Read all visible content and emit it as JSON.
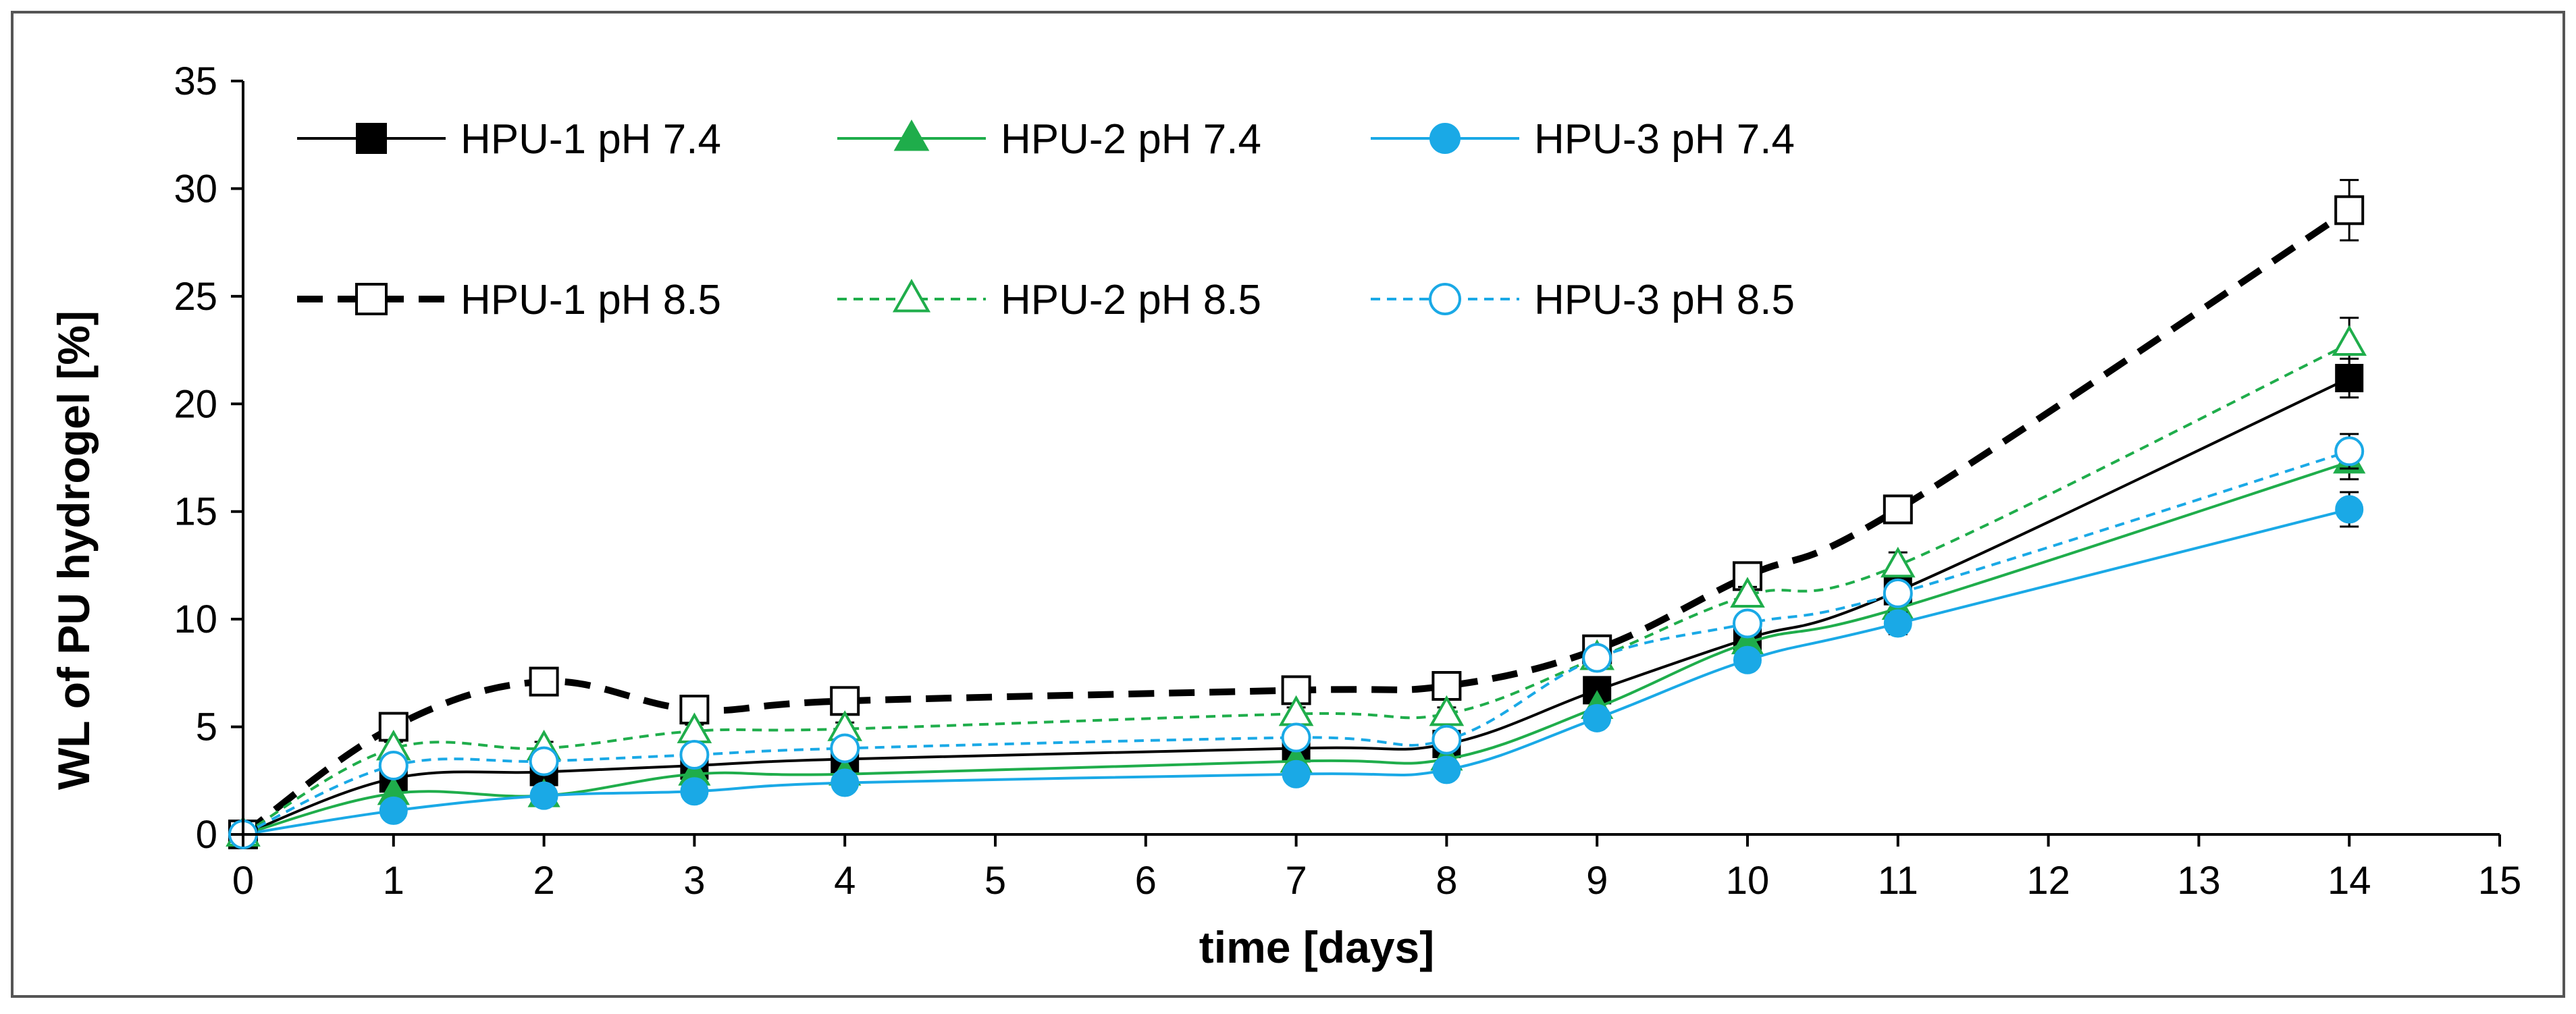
{
  "chart_data": {
    "type": "line",
    "title": "",
    "xlabel": "time [days]",
    "ylabel": "WL of PU hydrogel  [%]",
    "xlim": [
      0,
      15
    ],
    "ylim": [
      0,
      35
    ],
    "xticks": [
      0,
      1,
      2,
      3,
      4,
      5,
      6,
      7,
      8,
      9,
      10,
      11,
      12,
      13,
      14,
      15
    ],
    "yticks": [
      0,
      5,
      10,
      15,
      20,
      25,
      30,
      35
    ],
    "grid": false,
    "legend_position": "top-left",
    "x": [
      0,
      1,
      2,
      3,
      4,
      7,
      8,
      9,
      10,
      11,
      14
    ],
    "series": [
      {
        "name": "HPU-1 pH 7.4",
        "color": "#000000",
        "marker": "square",
        "filled": true,
        "dashed": false,
        "thick": false,
        "values": [
          0,
          2.6,
          2.9,
          3.2,
          3.5,
          4.0,
          4.2,
          6.7,
          9.1,
          11.3,
          21.2
        ],
        "errors": [
          0,
          0.3,
          0.3,
          0.3,
          0.3,
          0.3,
          0.3,
          0.4,
          0.4,
          0.5,
          0.9
        ]
      },
      {
        "name": "HPU-2 pH 7.4",
        "color": "#1fad4b",
        "marker": "triangle",
        "filled": true,
        "dashed": false,
        "thick": false,
        "values": [
          0,
          1.9,
          1.8,
          2.8,
          2.8,
          3.4,
          3.5,
          5.9,
          8.9,
          10.5,
          17.3
        ],
        "errors": [
          0,
          0.3,
          0.3,
          0.3,
          0.3,
          0.3,
          0.3,
          0.4,
          0.4,
          0.5,
          0.8
        ]
      },
      {
        "name": "HPU-3 pH 7.4",
        "color": "#1aa9e6",
        "marker": "circle",
        "filled": true,
        "dashed": false,
        "thick": false,
        "values": [
          0,
          1.1,
          1.8,
          2.0,
          2.4,
          2.8,
          3.0,
          5.4,
          8.1,
          9.8,
          15.1
        ],
        "errors": [
          0,
          0.3,
          0.3,
          0.3,
          0.3,
          0.3,
          0.3,
          0.4,
          0.4,
          0.5,
          0.8
        ]
      },
      {
        "name": "HPU-1 pH 8.5",
        "color": "#000000",
        "marker": "square",
        "filled": false,
        "dashed": true,
        "thick": true,
        "values": [
          0,
          5.0,
          7.1,
          5.8,
          6.2,
          6.7,
          6.9,
          8.6,
          12.0,
          15.1,
          29.0
        ],
        "errors": [
          0,
          0.3,
          0.3,
          0.3,
          0.3,
          0.3,
          0.3,
          0.4,
          0.4,
          0.5,
          1.4
        ]
      },
      {
        "name": "HPU-2 pH 8.5",
        "color": "#1fad4b",
        "marker": "triangle",
        "filled": false,
        "dashed": true,
        "thick": false,
        "values": [
          0,
          4.0,
          4.0,
          4.8,
          4.9,
          5.6,
          5.6,
          8.2,
          11.1,
          12.5,
          22.8
        ],
        "errors": [
          0,
          0.3,
          0.3,
          0.3,
          0.3,
          0.3,
          0.3,
          0.4,
          0.4,
          0.6,
          1.2
        ]
      },
      {
        "name": "HPU-3 pH 8.5",
        "color": "#1aa9e6",
        "marker": "circle",
        "filled": false,
        "dashed": true,
        "thick": false,
        "values": [
          0,
          3.2,
          3.4,
          3.7,
          4.0,
          4.5,
          4.4,
          8.2,
          9.8,
          11.2,
          17.8
        ],
        "errors": [
          0,
          0.3,
          0.3,
          0.3,
          0.3,
          0.3,
          0.3,
          0.4,
          0.4,
          0.5,
          0.8
        ]
      }
    ]
  }
}
